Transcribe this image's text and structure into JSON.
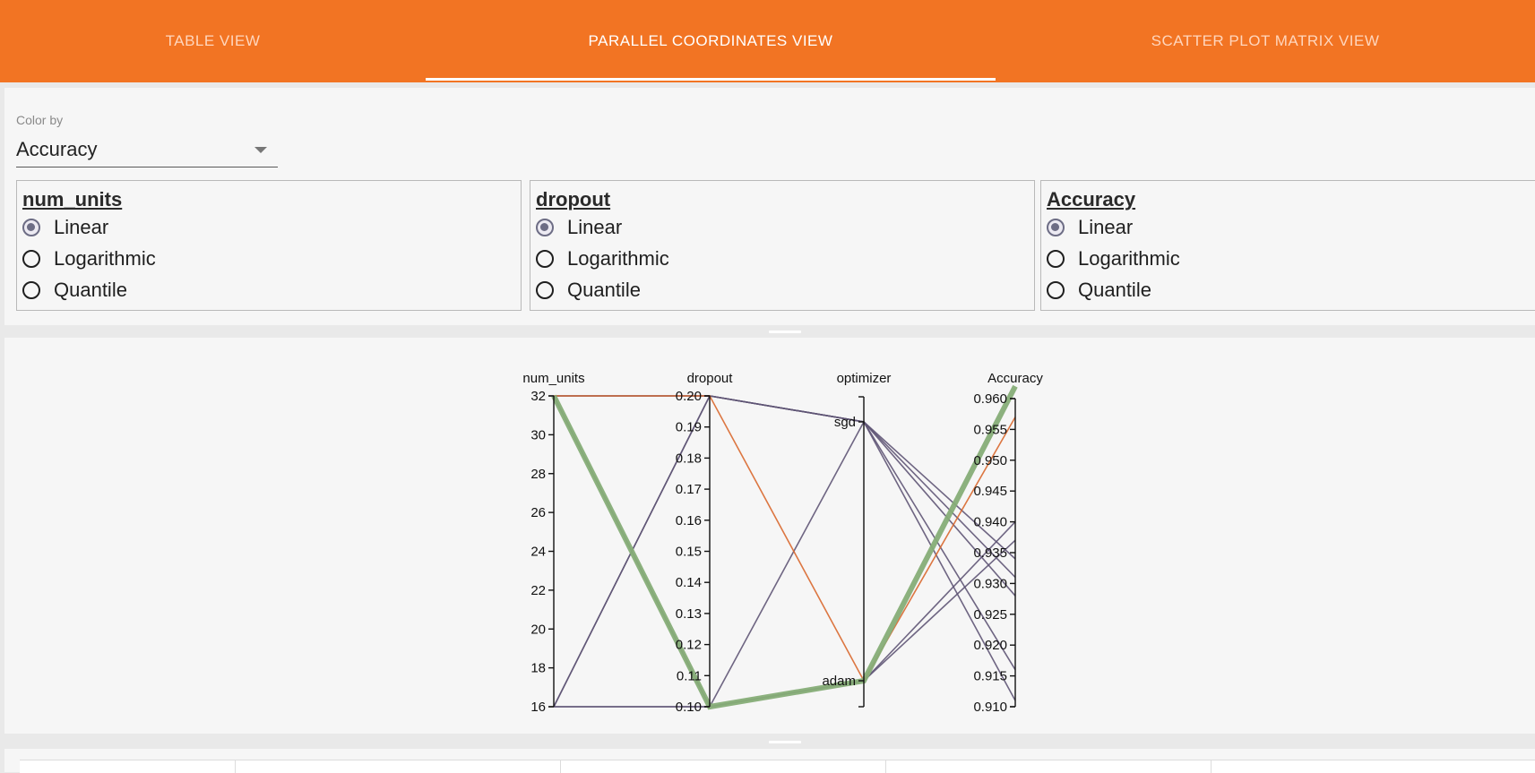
{
  "tabs": [
    {
      "label": "TABLE VIEW",
      "active": false
    },
    {
      "label": "PARALLEL COORDINATES VIEW",
      "active": true
    },
    {
      "label": "SCATTER PLOT MATRIX VIEW",
      "active": false
    }
  ],
  "color_by": {
    "label": "Color by",
    "value": "Accuracy"
  },
  "scale_panels": [
    {
      "title": "num_units",
      "options": [
        "Linear",
        "Logarithmic",
        "Quantile"
      ],
      "selected": "Linear"
    },
    {
      "title": "dropout",
      "options": [
        "Linear",
        "Logarithmic",
        "Quantile"
      ],
      "selected": "Linear"
    },
    {
      "title": "Accuracy",
      "options": [
        "Linear",
        "Logarithmic",
        "Quantile"
      ],
      "selected": "Linear"
    }
  ],
  "colors": {
    "accent": "#f27423",
    "line_default": "#5f5575",
    "line_orange": "#d9682e",
    "line_green": "#86ad77"
  },
  "chart_data": {
    "type": "parallel_coordinates",
    "axes": [
      {
        "name": "num_units",
        "kind": "numeric",
        "domain": [
          16,
          32
        ],
        "ticks": [
          "16",
          "18",
          "20",
          "22",
          "24",
          "26",
          "28",
          "30",
          "32"
        ]
      },
      {
        "name": "dropout",
        "kind": "numeric",
        "domain": [
          0.1,
          0.2
        ],
        "ticks": [
          "0.10",
          "0.11",
          "0.12",
          "0.13",
          "0.14",
          "0.15",
          "0.16",
          "0.17",
          "0.18",
          "0.19",
          "0.20"
        ]
      },
      {
        "name": "optimizer",
        "kind": "categorical",
        "categories": [
          "adam",
          "sgd"
        ]
      },
      {
        "name": "Accuracy",
        "kind": "numeric",
        "domain": [
          0.91,
          0.96
        ],
        "ticks": [
          "0.910",
          "0.915",
          "0.920",
          "0.925",
          "0.930",
          "0.935",
          "0.940",
          "0.945",
          "0.950",
          "0.955",
          "0.960"
        ]
      }
    ],
    "lines": [
      {
        "values": [
          32,
          0.1,
          "adam",
          0.962
        ],
        "color": "green",
        "highlight": true
      },
      {
        "values": [
          32,
          0.2,
          "adam",
          0.957
        ],
        "color": "orange"
      },
      {
        "values": [
          16,
          0.1,
          "adam",
          0.94
        ],
        "color": "line"
      },
      {
        "values": [
          16,
          0.1,
          "adam",
          0.937
        ],
        "color": "line"
      },
      {
        "values": [
          32,
          0.2,
          "sgd",
          0.934
        ],
        "color": "line"
      },
      {
        "values": [
          32,
          0.1,
          "sgd",
          0.931
        ],
        "color": "line"
      },
      {
        "values": [
          16,
          0.2,
          "sgd",
          0.928
        ],
        "color": "line"
      },
      {
        "values": [
          16,
          0.2,
          "sgd",
          0.916
        ],
        "color": "line"
      },
      {
        "values": [
          32,
          0.2,
          "sgd",
          0.911
        ],
        "color": "line"
      }
    ]
  },
  "table": {
    "columns": [
      "",
      "",
      "",
      "",
      "",
      ""
    ]
  }
}
